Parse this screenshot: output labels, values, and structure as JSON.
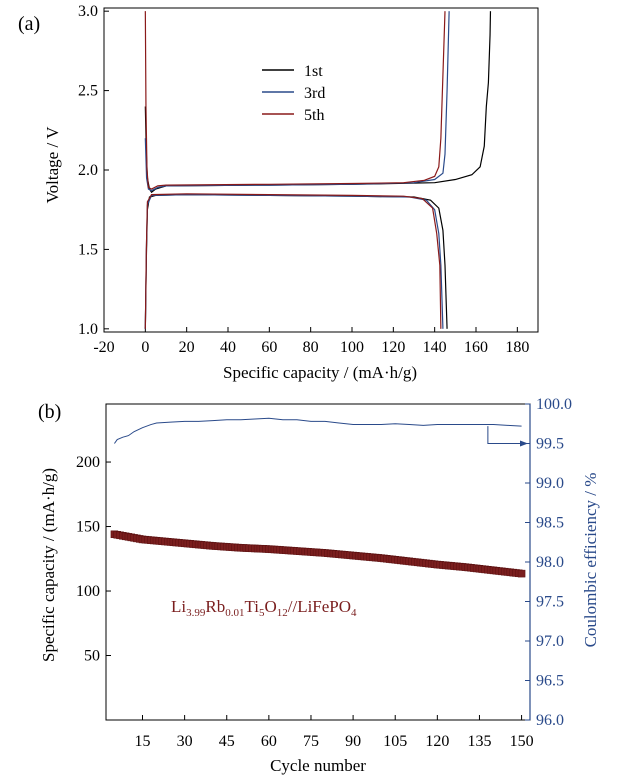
{
  "chart_data": [
    {
      "panel_label": "(a)",
      "type": "line",
      "xlabel": "Specific capacity / (mA·h/g)",
      "ylabel": "Voltage / V",
      "xlim": [
        -20,
        190
      ],
      "ylim": [
        0.98,
        3.02
      ],
      "xticks": [
        -20,
        0,
        20,
        40,
        60,
        80,
        100,
        120,
        140,
        160,
        180
      ],
      "yticks": [
        1.0,
        1.5,
        2.0,
        2.5,
        3.0
      ],
      "legend_position": "top-center",
      "series": [
        {
          "name": "1st",
          "color": "#000000",
          "segments": [
            [
              [
                0,
                1.0
              ],
              [
                0.5,
                1.45
              ],
              [
                1,
                1.75
              ],
              [
                2,
                1.83
              ],
              [
                5,
                1.84
              ],
              [
                20,
                1.845
              ],
              [
                60,
                1.84
              ],
              [
                100,
                1.835
              ],
              [
                130,
                1.83
              ],
              [
                138,
                1.81
              ],
              [
                142,
                1.76
              ],
              [
                144,
                1.62
              ],
              [
                145,
                1.4
              ],
              [
                145.5,
                1.2
              ],
              [
                146,
                1.0
              ]
            ],
            [
              [
                0,
                2.4
              ],
              [
                0.5,
                2.1
              ],
              [
                1,
                1.95
              ],
              [
                2,
                1.88
              ],
              [
                3,
                1.86
              ],
              [
                5,
                1.88
              ],
              [
                10,
                1.9
              ],
              [
                60,
                1.905
              ],
              [
                100,
                1.91
              ],
              [
                140,
                1.92
              ],
              [
                150,
                1.94
              ],
              [
                158,
                1.97
              ],
              [
                162,
                2.02
              ],
              [
                164,
                2.15
              ],
              [
                165,
                2.4
              ],
              [
                166,
                2.55
              ],
              [
                166.8,
                2.85
              ],
              [
                167,
                3.0
              ]
            ]
          ]
        },
        {
          "name": "3rd",
          "color": "#2a4a8a",
          "segments": [
            [
              [
                0,
                1.0
              ],
              [
                0.5,
                1.5
              ],
              [
                1,
                1.78
              ],
              [
                3,
                1.84
              ],
              [
                20,
                1.845
              ],
              [
                60,
                1.84
              ],
              [
                100,
                1.835
              ],
              [
                128,
                1.83
              ],
              [
                136,
                1.81
              ],
              [
                140,
                1.75
              ],
              [
                142,
                1.6
              ],
              [
                143,
                1.4
              ],
              [
                144,
                1.0
              ]
            ],
            [
              [
                0,
                2.2
              ],
              [
                0.6,
                1.95
              ],
              [
                1.5,
                1.88
              ],
              [
                3,
                1.87
              ],
              [
                6,
                1.89
              ],
              [
                10,
                1.9
              ],
              [
                60,
                1.905
              ],
              [
                100,
                1.91
              ],
              [
                130,
                1.92
              ],
              [
                140,
                1.94
              ],
              [
                144,
                1.98
              ],
              [
                145,
                2.1
              ],
              [
                146,
                2.5
              ],
              [
                147,
                3.0
              ]
            ]
          ]
        },
        {
          "name": "5th",
          "color": "#8a1a1a",
          "segments": [
            [
              [
                0,
                1.0
              ],
              [
                0.5,
                1.5
              ],
              [
                1,
                1.8
              ],
              [
                3,
                1.845
              ],
              [
                20,
                1.85
              ],
              [
                60,
                1.845
              ],
              [
                100,
                1.84
              ],
              [
                125,
                1.835
              ],
              [
                134,
                1.82
              ],
              [
                139,
                1.76
              ],
              [
                141,
                1.6
              ],
              [
                142.5,
                1.4
              ],
              [
                143,
                1.0
              ]
            ],
            [
              [
                0,
                3.0
              ],
              [
                0.3,
                2.4
              ],
              [
                0.8,
                2.0
              ],
              [
                1.5,
                1.89
              ],
              [
                3,
                1.88
              ],
              [
                6,
                1.9
              ],
              [
                10,
                1.905
              ],
              [
                60,
                1.91
              ],
              [
                100,
                1.915
              ],
              [
                125,
                1.92
              ],
              [
                135,
                1.935
              ],
              [
                140,
                1.96
              ],
              [
                142,
                2.02
              ],
              [
                143,
                2.2
              ],
              [
                144,
                2.6
              ],
              [
                145,
                3.0
              ]
            ]
          ]
        }
      ]
    },
    {
      "panel_label": "(b)",
      "type": "scatter",
      "xlabel": "Cycle number",
      "ylabel": "Specific capacity / (mA·h/g)",
      "y2label": "Coulombic efficiency / %",
      "xlim": [
        2,
        153
      ],
      "ylim": [
        0,
        245
      ],
      "y2lim": [
        96.0,
        100.0
      ],
      "xticks": [
        15,
        30,
        45,
        60,
        75,
        90,
        105,
        120,
        135,
        150
      ],
      "yticks": [
        50,
        100,
        150,
        200
      ],
      "y2ticks": [
        96.0,
        96.5,
        97.0,
        97.5,
        98.0,
        98.5,
        99.0,
        99.5,
        100.0
      ],
      "annotation": {
        "main": "Li",
        "sub1": "3.99",
        "mid1": "Rb",
        "sub2": "0.01",
        "mid2": "Ti",
        "sub3": "5",
        "mid3": "O",
        "sub4": "12",
        "tail": "//LiFePO",
        "sub5": "4"
      },
      "capacity": {
        "color": "#7a1e1e",
        "x": [
          5,
          10,
          15,
          20,
          25,
          30,
          40,
          50,
          60,
          70,
          80,
          90,
          100,
          110,
          120,
          130,
          140,
          150
        ],
        "y": [
          144,
          142,
          140,
          139,
          138,
          137,
          135,
          133.5,
          132.5,
          131,
          129.5,
          127.5,
          125.5,
          123,
          120.5,
          118.5,
          116,
          113.5
        ]
      },
      "efficiency": {
        "color": "#2a4a8a",
        "x": [
          5,
          6,
          8,
          10,
          12,
          15,
          18,
          20,
          25,
          30,
          35,
          40,
          45,
          50,
          55,
          60,
          65,
          70,
          75,
          80,
          85,
          90,
          95,
          100,
          105,
          110,
          115,
          120,
          125,
          130,
          135,
          140,
          145,
          150
        ],
        "y": [
          99.5,
          99.55,
          99.58,
          99.6,
          99.65,
          99.7,
          99.74,
          99.76,
          99.77,
          99.78,
          99.78,
          99.79,
          99.8,
          99.8,
          99.81,
          99.82,
          99.8,
          99.8,
          99.78,
          99.78,
          99.76,
          99.74,
          99.74,
          99.74,
          99.75,
          99.74,
          99.73,
          99.74,
          99.74,
          99.74,
          99.74,
          99.74,
          99.73,
          99.72
        ]
      }
    }
  ]
}
